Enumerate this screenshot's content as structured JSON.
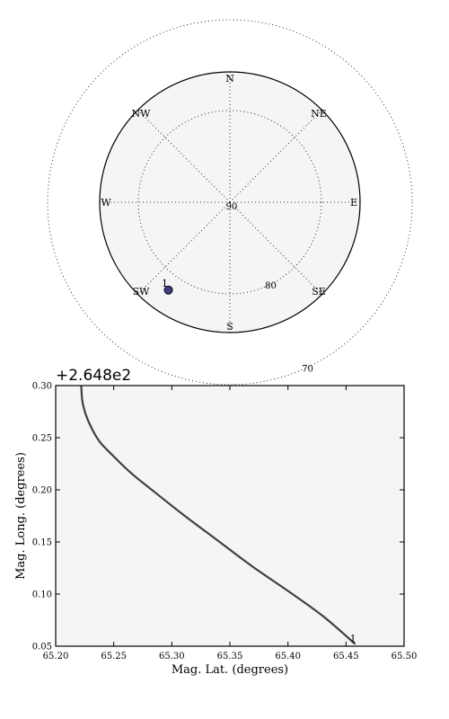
{
  "chart_data": [
    {
      "type": "scatter",
      "subtype": "polar-sky-plot",
      "compass_labels": [
        "N",
        "NE",
        "E",
        "SE",
        "S",
        "SW",
        "W",
        "NW"
      ],
      "elevation_rings": [
        90,
        80,
        70
      ],
      "elevation_labels": [
        "90",
        "80",
        "70"
      ],
      "points": [
        {
          "label": "1",
          "azimuth_deg": 215,
          "elevation_deg": 78.3,
          "color": "#404080"
        }
      ],
      "face_color": "#f5f5f5",
      "grid": true
    },
    {
      "type": "line",
      "title": "",
      "xlabel": "Mag. Lat. (degrees)",
      "ylabel": "Mag. Long. (degrees)",
      "y_offset_label": "+2.648e2",
      "xlim": [
        65.2,
        65.5
      ],
      "ylim": [
        0.05,
        0.3
      ],
      "xticks": [
        "65.20",
        "65.25",
        "65.30",
        "65.35",
        "65.40",
        "65.45",
        "65.50"
      ],
      "yticks": [
        "0.05",
        "0.10",
        "0.15",
        "0.20",
        "0.25",
        "0.30"
      ],
      "series": [
        {
          "x": [
            65.222,
            65.223,
            65.226,
            65.231,
            65.238,
            65.25,
            65.265,
            65.285,
            65.31,
            65.34,
            65.37,
            65.4,
            65.43,
            65.458
          ],
          "y": [
            0.3,
            0.285,
            0.272,
            0.259,
            0.246,
            0.232,
            0.216,
            0.198,
            0.176,
            0.151,
            0.126,
            0.103,
            0.079,
            0.052
          ]
        }
      ],
      "end_label": "1",
      "line_color": "#404040",
      "face_color": "#f5f5f5",
      "grid": false
    }
  ]
}
